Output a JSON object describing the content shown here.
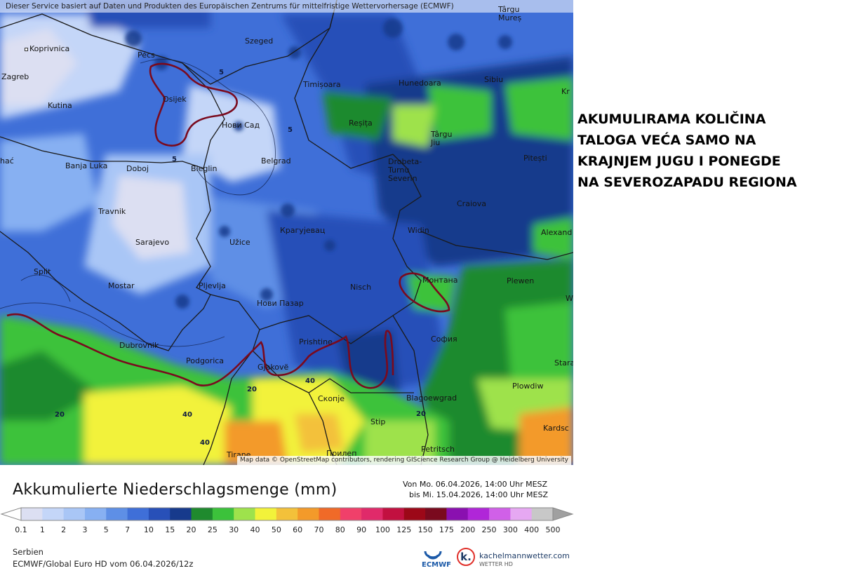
{
  "map": {
    "attribution_top": "Dieser Service basiert auf Daten und Produkten des Europäischen Zentrums für mittelfristige Wettervorhersage (ECMWF)",
    "attribution_bottom": "Map data © OpenStreetMap contributors, rendering GIScience Research Group @ Heidelberg University",
    "cities": [
      {
        "name": "Koprivnica"
      },
      {
        "name": "Pécs"
      },
      {
        "name": "Szeged"
      },
      {
        "name": "Zagreb"
      },
      {
        "name": "Osijek"
      },
      {
        "name": "Kutina"
      },
      {
        "name": "Нови Сад"
      },
      {
        "name": "Banja Luka"
      },
      {
        "name": "Doboj"
      },
      {
        "name": "Bieglin"
      },
      {
        "name": "Belgrad"
      },
      {
        "name": "Travnik"
      },
      {
        "name": "Sarajevo"
      },
      {
        "name": "Užice"
      },
      {
        "name": "Крагујевац"
      },
      {
        "name": "Split"
      },
      {
        "name": "Mostar"
      },
      {
        "name": "Pljevlja"
      },
      {
        "name": "Нови Пазар"
      },
      {
        "name": "Nisch"
      },
      {
        "name": "Dubrovnik"
      },
      {
        "name": "Podgorica"
      },
      {
        "name": "Prishtine"
      },
      {
        "name": "Gjakovë"
      },
      {
        "name": "Скопје"
      },
      {
        "name": "Stip"
      },
      {
        "name": "Tirane"
      },
      {
        "name": "Прилеп"
      },
      {
        "name": "Petritsch"
      },
      {
        "name": "Blagoewgrad"
      },
      {
        "name": "София"
      },
      {
        "name": "Монтана"
      },
      {
        "name": "Widin"
      },
      {
        "name": "Plewen"
      },
      {
        "name": "Craiova"
      },
      {
        "name": "Drobeta-Turnu Severin"
      },
      {
        "name": "Timișoara"
      },
      {
        "name": "Hunedoara"
      },
      {
        "name": "Reșița"
      },
      {
        "name": "Târgu Jiu"
      },
      {
        "name": "Sibiu"
      },
      {
        "name": "Pitești"
      },
      {
        "name": "Târgu Mureș"
      },
      {
        "name": "Plowdiw"
      },
      {
        "name": "Kardsc"
      },
      {
        "name": "Alexand"
      },
      {
        "name": "Stara"
      },
      {
        "name": "Kr"
      },
      {
        "name": "hać"
      },
      {
        "name": "W"
      }
    ],
    "contour_labels": [
      "5",
      "5",
      "5",
      "20",
      "20",
      "40",
      "40",
      "20",
      "40"
    ]
  },
  "annotation": {
    "lines": [
      "AKUMULIRAMA KOLIČINA",
      "TALOGA VEĆA SAMO NA",
      "KRAJNJEM JUGU I PONEGDE",
      "NA SEVEROZAPADU REGIONA"
    ]
  },
  "legend": {
    "title": "Akkumulierte Niederschlagsmenge (mm)",
    "period_from": "Von Mo. 06.04.2026, 14:00 Uhr MESZ",
    "period_to": "bis Mi. 15.04.2026, 14:00 Uhr MESZ",
    "scale": [
      {
        "label": "0.1",
        "color": "#dcdff2"
      },
      {
        "label": "1",
        "color": "#c4d6f8"
      },
      {
        "label": "2",
        "color": "#a9c6f6"
      },
      {
        "label": "3",
        "color": "#87b0f2"
      },
      {
        "label": "5",
        "color": "#5e8fe6"
      },
      {
        "label": "7",
        "color": "#3f6fd8"
      },
      {
        "label": "10",
        "color": "#2850b8"
      },
      {
        "label": "15",
        "color": "#173a8c"
      },
      {
        "label": "20",
        "color": "#1f8a2e"
      },
      {
        "label": "25",
        "color": "#3cc23b"
      },
      {
        "label": "30",
        "color": "#9ee24c"
      },
      {
        "label": "40",
        "color": "#f2f23a"
      },
      {
        "label": "50",
        "color": "#f3c13a"
      },
      {
        "label": "60",
        "color": "#f39a2a"
      },
      {
        "label": "70",
        "color": "#f06a28"
      },
      {
        "label": "80",
        "color": "#f0406a"
      },
      {
        "label": "90",
        "color": "#e02a6a"
      },
      {
        "label": "100",
        "color": "#c21040"
      },
      {
        "label": "125",
        "color": "#9c0818"
      },
      {
        "label": "150",
        "color": "#7a0a1e"
      },
      {
        "label": "175",
        "color": "#8a10b0"
      },
      {
        "label": "200",
        "color": "#b026d8"
      },
      {
        "label": "250",
        "color": "#d060e8"
      },
      {
        "label": "300",
        "color": "#e6a8f2"
      },
      {
        "label": "400",
        "color": "#c8c8c8"
      },
      {
        "label": "500",
        "color": "#a0a0a0"
      }
    ]
  },
  "footer": {
    "region": "Serbien",
    "model_run": "ECMWF/Global Euro HD vom  06.04.2026/12z",
    "ecmwf_label": "ECMWF",
    "kachel_name": "kachelmannwetter.com",
    "kachel_sub": "WETTER HD",
    "kachel_letter": "k."
  }
}
